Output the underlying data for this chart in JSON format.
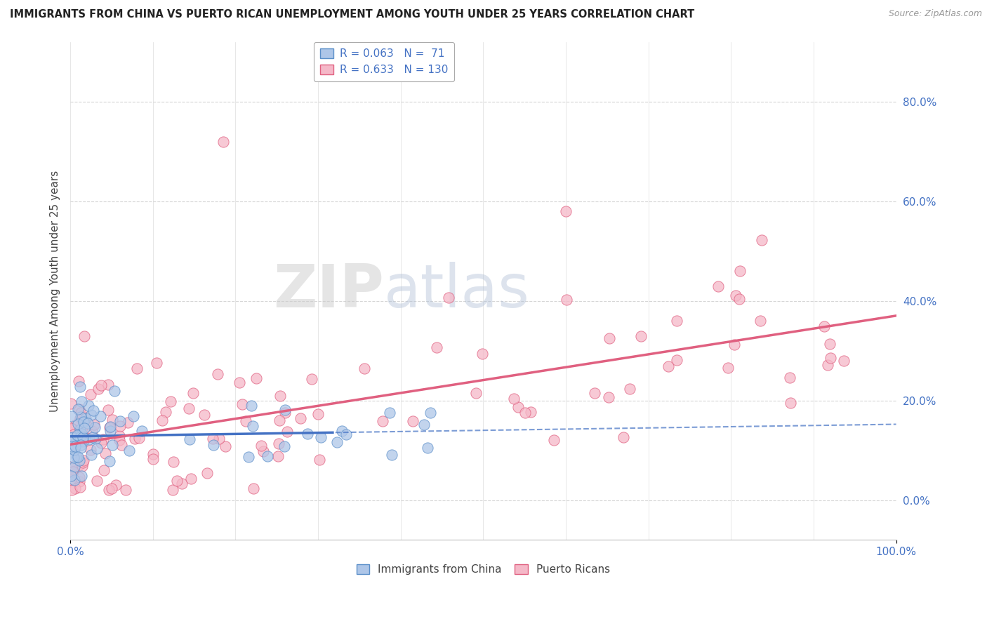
{
  "title": "IMMIGRANTS FROM CHINA VS PUERTO RICAN UNEMPLOYMENT AMONG YOUTH UNDER 25 YEARS CORRELATION CHART",
  "source": "Source: ZipAtlas.com",
  "ylabel": "Unemployment Among Youth under 25 years",
  "ytick_vals": [
    0.0,
    0.2,
    0.4,
    0.6,
    0.8
  ],
  "ytick_labels": [
    "0.0%",
    "20.0%",
    "40.0%",
    "60.0%",
    "80.0%"
  ],
  "xlim": [
    0.0,
    1.0
  ],
  "ylim": [
    -0.08,
    0.92
  ],
  "color_china_fill": "#aec6e8",
  "color_china_edge": "#5b8fc9",
  "color_pr_fill": "#f5b8c8",
  "color_pr_edge": "#e06080",
  "color_china_line_solid": "#4472c4",
  "color_pr_line": "#e06080",
  "color_text_blue": "#4472c4",
  "color_grid": "#cccccc",
  "background_color": "#ffffff",
  "legend1_text": "R = 0.063   N =  71",
  "legend2_text": "R = 0.633   N = 130",
  "legend_cat1": "Immigrants from China",
  "legend_cat2": "Puerto Ricans"
}
